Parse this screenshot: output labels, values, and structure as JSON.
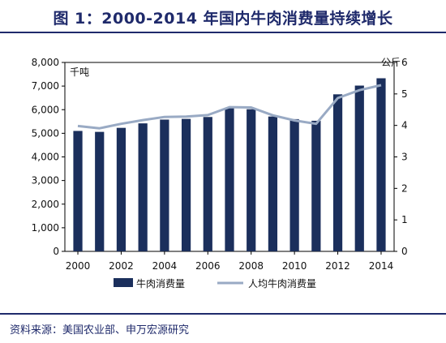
{
  "title": "图 1：2000-2014 年国内牛肉消费量持续增长",
  "source": "资料来源：美国农业部、申万宏源研究",
  "chart_data": {
    "type": "bar+line",
    "x": [
      2000,
      2001,
      2002,
      2003,
      2004,
      2005,
      2006,
      2007,
      2008,
      2009,
      2010,
      2011,
      2012,
      2013,
      2014
    ],
    "x_tick_labels": [
      "2000",
      "2002",
      "2004",
      "2006",
      "2008",
      "2010",
      "2012",
      "2014"
    ],
    "series": [
      {
        "name": "牛肉消费量",
        "type": "bar",
        "axis": "left",
        "color": "#1b2f5c",
        "values": [
          5100,
          5060,
          5230,
          5420,
          5580,
          5610,
          5690,
          6080,
          6020,
          5710,
          5600,
          5530,
          6650,
          7020,
          7330
        ]
      },
      {
        "name": "人均牛肉消费量",
        "type": "line",
        "axis": "right",
        "color": "#99aac4",
        "values": [
          3.98,
          3.91,
          4.05,
          4.17,
          4.27,
          4.28,
          4.33,
          4.58,
          4.57,
          4.32,
          4.16,
          4.05,
          4.87,
          5.12,
          5.28
        ]
      }
    ],
    "y_left": {
      "unit": "千吨",
      "min": 0,
      "max": 8000,
      "ticks": [
        "0",
        "1,000",
        "2,000",
        "3,000",
        "4,000",
        "5,000",
        "6,000",
        "7,000",
        "8,000"
      ]
    },
    "y_right": {
      "unit": "公斤",
      "min": 0,
      "max": 6,
      "ticks": [
        "0",
        "1",
        "2",
        "3",
        "4",
        "5",
        "6"
      ]
    },
    "legend_position": "bottom"
  }
}
